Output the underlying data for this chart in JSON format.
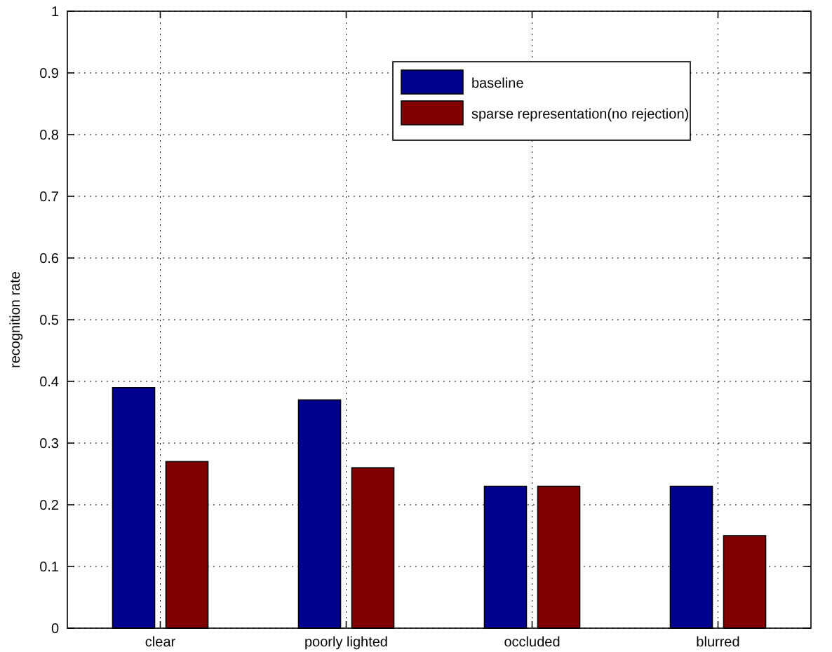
{
  "chart_data": {
    "type": "bar",
    "ylabel": "recognition rate",
    "categories": [
      "clear",
      "poorly lighted",
      "occluded",
      "blurred"
    ],
    "series": [
      {
        "name": "baseline",
        "color": "#00008f",
        "values": [
          0.39,
          0.37,
          0.23,
          0.23
        ]
      },
      {
        "name": "sparse representation(no rejection)",
        "color": "#800000",
        "values": [
          0.27,
          0.26,
          0.23,
          0.15
        ]
      }
    ],
    "ylim": [
      0,
      1
    ],
    "yticks": [
      0,
      0.1,
      0.2,
      0.3,
      0.4,
      0.5,
      0.6,
      0.7,
      0.8,
      0.9,
      1
    ],
    "grid": true,
    "legend": "top right"
  }
}
